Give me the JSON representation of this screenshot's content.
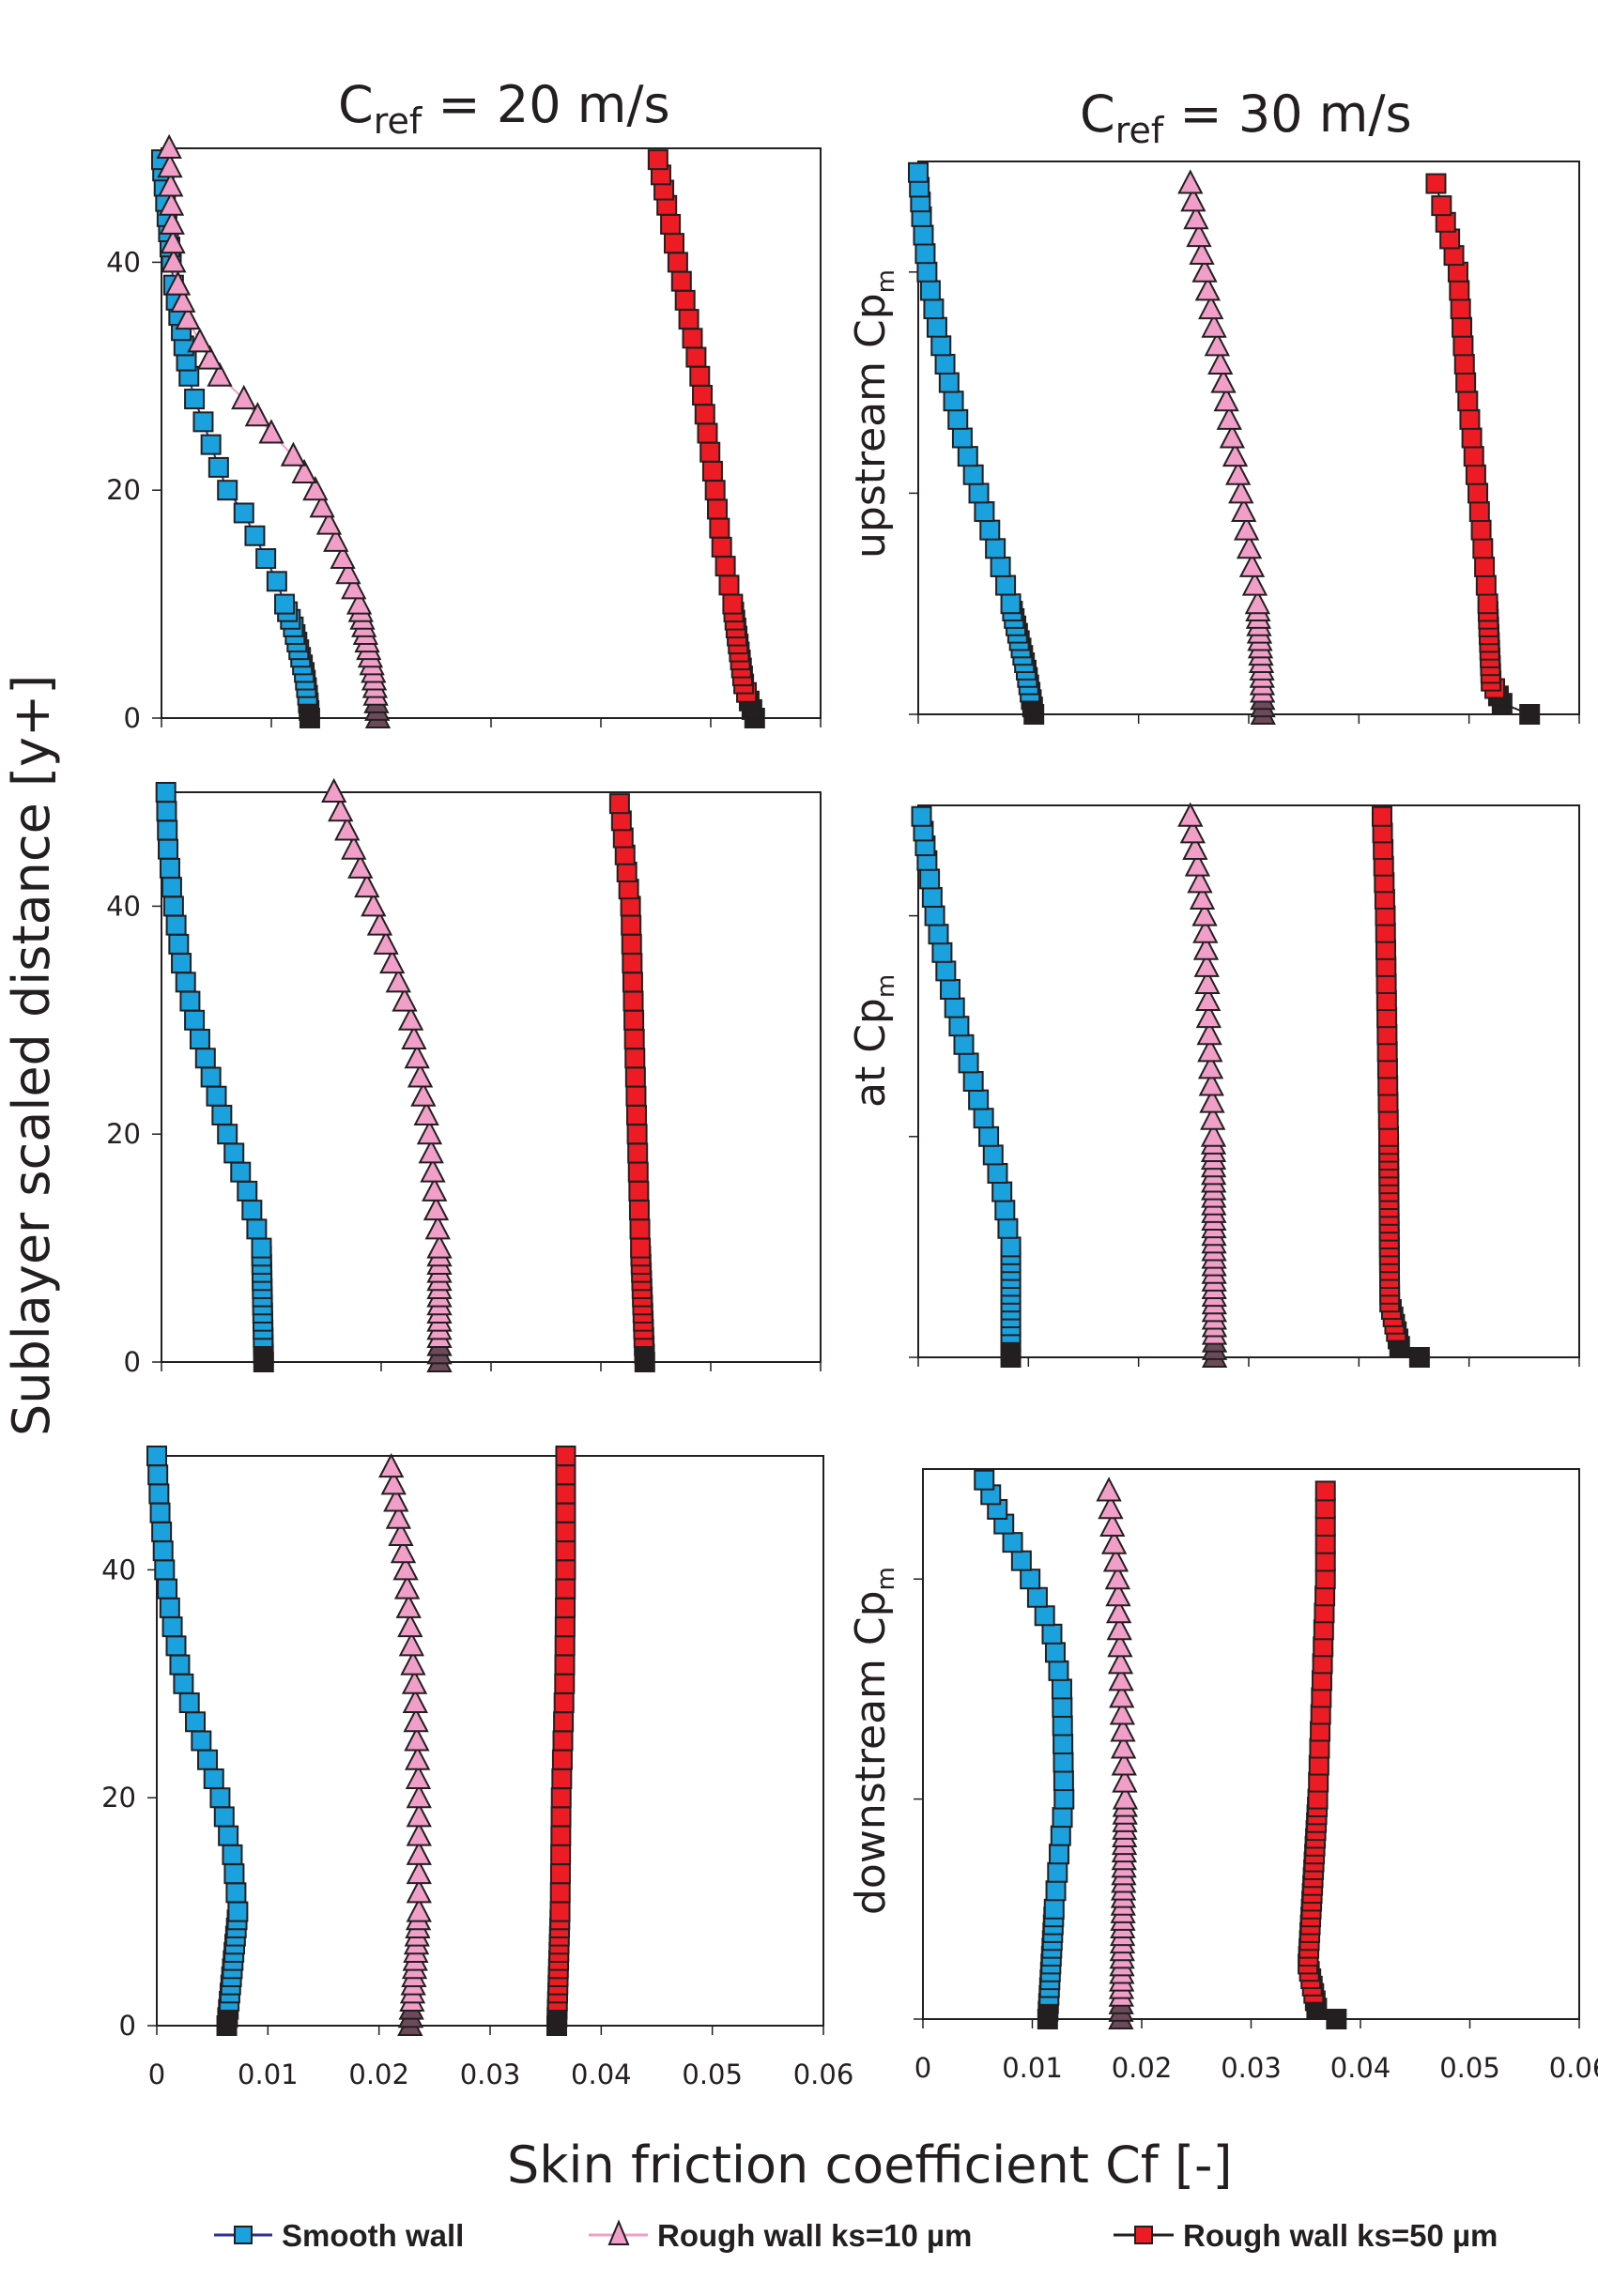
{
  "chart_data": {
    "type": "scatter",
    "layout": "3 rows x 2 columns of profile plots",
    "xlabel": "Skin friction coefficient  Cf [-]",
    "ylabel": "Sublayer scaled distance [y+]",
    "xlim": [
      0,
      0.06
    ],
    "ylim": [
      0,
      50
    ],
    "x_ticks": [
      "0",
      "0.01",
      "0.02",
      "0.03",
      "0.04",
      "0.05",
      "0.06"
    ],
    "y_ticks": [
      "0",
      "20",
      "40"
    ],
    "columns": [
      {
        "title_main": "C",
        "title_sub": "ref",
        "title_rest": " = 20 m/s"
      },
      {
        "title_main": "C",
        "title_sub": "ref",
        "title_rest": " = 30 m/s"
      }
    ],
    "row_labels": [
      {
        "text": "upstream  Cp",
        "sub": "m"
      },
      {
        "text": "at  Cp",
        "sub": "m"
      },
      {
        "text": "downstream  Cp",
        "sub": "m"
      }
    ],
    "legend": [
      {
        "name": "Smooth wall",
        "marker": "square",
        "fill": "#1ba1dd",
        "line": "#2e3192"
      },
      {
        "name": "Rough  wall ks=10 µm",
        "marker": "triangle",
        "fill": "#f19ec8",
        "line": "#f19ec8"
      },
      {
        "name": "Rough  wall ks=50 µm",
        "marker": "square",
        "fill": "#ed1c24",
        "line": "#231f20"
      }
    ],
    "legend_position": "bottom",
    "panels": [
      {
        "column": 0,
        "row": 0,
        "series": [
          [
            [
              0.0135,
              0
            ],
            [
              0.0133,
              2
            ],
            [
              0.013,
              4
            ],
            [
              0.0125,
              6
            ],
            [
              0.012,
              8
            ],
            [
              0.0112,
              10
            ],
            [
              0.0105,
              12
            ],
            [
              0.0095,
              14
            ],
            [
              0.0085,
              16
            ],
            [
              0.0075,
              18
            ],
            [
              0.006,
              20
            ],
            [
              0.0052,
              22
            ],
            [
              0.0045,
              24
            ],
            [
              0.0038,
              26
            ],
            [
              0.003,
              28
            ],
            [
              0.0025,
              30
            ],
            [
              0.0018,
              34
            ],
            [
              0.0011,
              38
            ],
            [
              0.0009,
              40
            ],
            [
              0.0005,
              44
            ],
            [
              0.0001,
              48
            ],
            [
              0.0,
              49
            ]
          ],
          [
            [
              0.0197,
              0
            ],
            [
              0.0193,
              4
            ],
            [
              0.018,
              10
            ],
            [
              0.0165,
              14
            ],
            [
              0.014,
              20
            ],
            [
              0.012,
              23
            ],
            [
              0.01,
              25
            ],
            [
              0.0075,
              28
            ],
            [
              0.0053,
              30
            ],
            [
              0.0035,
              33
            ],
            [
              0.0024,
              35
            ],
            [
              0.0015,
              38
            ],
            [
              0.0011,
              40
            ],
            [
              0.0009,
              45
            ],
            [
              0.0007,
              50
            ]
          ],
          [
            [
              0.054,
              0
            ],
            [
              0.053,
              3
            ],
            [
              0.052,
              10
            ],
            [
              0.051,
              15
            ],
            [
              0.0504,
              20
            ],
            [
              0.0497,
              25
            ],
            [
              0.049,
              30
            ],
            [
              0.048,
              35
            ],
            [
              0.047,
              40
            ],
            [
              0.046,
              45
            ],
            [
              0.0452,
              49
            ]
          ]
        ]
      },
      {
        "column": 1,
        "row": 0,
        "series": [
          [
            [
              0.0105,
              0
            ],
            [
              0.0098,
              4
            ],
            [
              0.0084,
              10
            ],
            [
              0.007,
              15
            ],
            [
              0.0055,
              20
            ],
            [
              0.004,
              25
            ],
            [
              0.0028,
              30
            ],
            [
              0.0017,
              35
            ],
            [
              0.0008,
              40
            ],
            [
              0.0003,
              45
            ],
            [
              0.0,
              49
            ]
          ],
          [
            [
              0.0313,
              0
            ],
            [
              0.0312,
              4
            ],
            [
              0.0308,
              10
            ],
            [
              0.0293,
              20
            ],
            [
              0.0277,
              30
            ],
            [
              0.026,
              40
            ],
            [
              0.0247,
              48
            ]
          ],
          [
            [
              0.0555,
              0
            ],
            [
              0.053,
              1
            ],
            [
              0.052,
              3
            ],
            [
              0.0517,
              10
            ],
            [
              0.0508,
              20
            ],
            [
              0.0497,
              30
            ],
            [
              0.049,
              40
            ],
            [
              0.0475,
              46
            ],
            [
              0.047,
              48
            ]
          ]
        ]
      },
      {
        "column": 0,
        "row": 1,
        "series": [
          [
            [
              0.0093,
              0
            ],
            [
              0.0092,
              5
            ],
            [
              0.0091,
              10
            ],
            [
              0.0078,
              15
            ],
            [
              0.006,
              20
            ],
            [
              0.0045,
              25
            ],
            [
              0.003,
              30
            ],
            [
              0.0018,
              35
            ],
            [
              0.0011,
              40
            ],
            [
              0.0006,
              45
            ],
            [
              0.0004,
              50
            ]
          ],
          [
            [
              0.0253,
              0
            ],
            [
              0.0253,
              10
            ],
            [
              0.0244,
              20
            ],
            [
              0.0227,
              30
            ],
            [
              0.0193,
              40
            ],
            [
              0.0157,
              50
            ]
          ],
          [
            [
              0.044,
              0
            ],
            [
              0.0436,
              10
            ],
            [
              0.0433,
              20
            ],
            [
              0.043,
              30
            ],
            [
              0.0427,
              40
            ],
            [
              0.0417,
              49
            ]
          ]
        ]
      },
      {
        "column": 1,
        "row": 1,
        "series": [
          [
            [
              0.0084,
              0
            ],
            [
              0.0084,
              10
            ],
            [
              0.0076,
              15
            ],
            [
              0.0064,
              20
            ],
            [
              0.005,
              25
            ],
            [
              0.0037,
              30
            ],
            [
              0.0025,
              35
            ],
            [
              0.0015,
              40
            ],
            [
              0.0008,
              45
            ],
            [
              0.0003,
              49
            ]
          ],
          [
            [
              0.0269,
              0
            ],
            [
              0.0268,
              20
            ],
            [
              0.026,
              40
            ],
            [
              0.0247,
              49
            ]
          ],
          [
            [
              0.0455,
              0
            ],
            [
              0.0437,
              1
            ],
            [
              0.0428,
              5
            ],
            [
              0.0427,
              20
            ],
            [
              0.0424,
              40
            ],
            [
              0.0421,
              49
            ]
          ]
        ]
      },
      {
        "column": 0,
        "row": 2,
        "series": [
          [
            [
              0.0063,
              0
            ],
            [
              0.0068,
              5
            ],
            [
              0.0073,
              10
            ],
            [
              0.0068,
              15
            ],
            [
              0.0057,
              20
            ],
            [
              0.004,
              25
            ],
            [
              0.0024,
              30
            ],
            [
              0.0014,
              35
            ],
            [
              0.0007,
              40
            ],
            [
              0.0003,
              45
            ],
            [
              0.0,
              50
            ]
          ],
          [
            [
              0.0228,
              0
            ],
            [
              0.0236,
              10
            ],
            [
              0.0236,
              20
            ],
            [
              0.0232,
              30
            ],
            [
              0.0224,
              40
            ],
            [
              0.0211,
              49
            ]
          ],
          [
            [
              0.036,
              0
            ],
            [
              0.0363,
              10
            ],
            [
              0.0364,
              20
            ],
            [
              0.0367,
              30
            ],
            [
              0.0368,
              40
            ],
            [
              0.0368,
              50
            ]
          ]
        ]
      },
      {
        "column": 1,
        "row": 2,
        "series": [
          [
            [
              0.0114,
              0
            ],
            [
              0.012,
              10
            ],
            [
              0.0129,
              20
            ],
            [
              0.0127,
              30
            ],
            [
              0.0118,
              35
            ],
            [
              0.0098,
              40
            ],
            [
              0.0074,
              45
            ],
            [
              0.0056,
              49
            ]
          ],
          [
            [
              0.0181,
              0
            ],
            [
              0.0185,
              20
            ],
            [
              0.0178,
              40
            ],
            [
              0.017,
              48
            ]
          ],
          [
            [
              0.0378,
              0
            ],
            [
              0.036,
              1
            ],
            [
              0.0352,
              5
            ],
            [
              0.0361,
              20
            ],
            [
              0.0368,
              40
            ],
            [
              0.0368,
              48
            ]
          ]
        ]
      }
    ]
  }
}
